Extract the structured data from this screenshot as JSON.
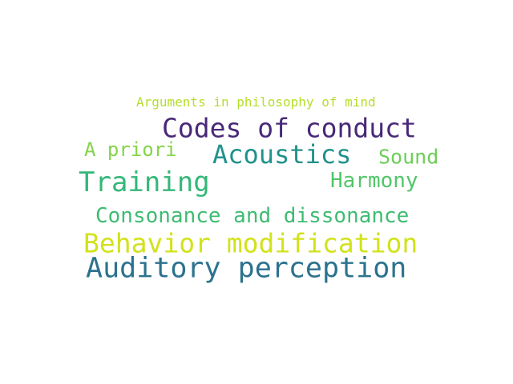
{
  "words": [
    {
      "text": "Arguments in philosophy of mind",
      "color": "#b5de2b"
    },
    {
      "text": "Codes of conduct",
      "color": "#482878"
    },
    {
      "text": "A priori",
      "color": "#84d44b"
    },
    {
      "text": "Acoustics",
      "color": "#21918c"
    },
    {
      "text": "Sound",
      "color": "#6ece58"
    },
    {
      "text": "Training",
      "color": "#35b779"
    },
    {
      "text": "Harmony",
      "color": "#52c569"
    },
    {
      "text": "Consonance and dissonance",
      "color": "#3fbc73"
    },
    {
      "text": "Behavior modification",
      "color": "#d2e21b"
    },
    {
      "text": "Auditory perception",
      "color": "#2c728e"
    }
  ]
}
